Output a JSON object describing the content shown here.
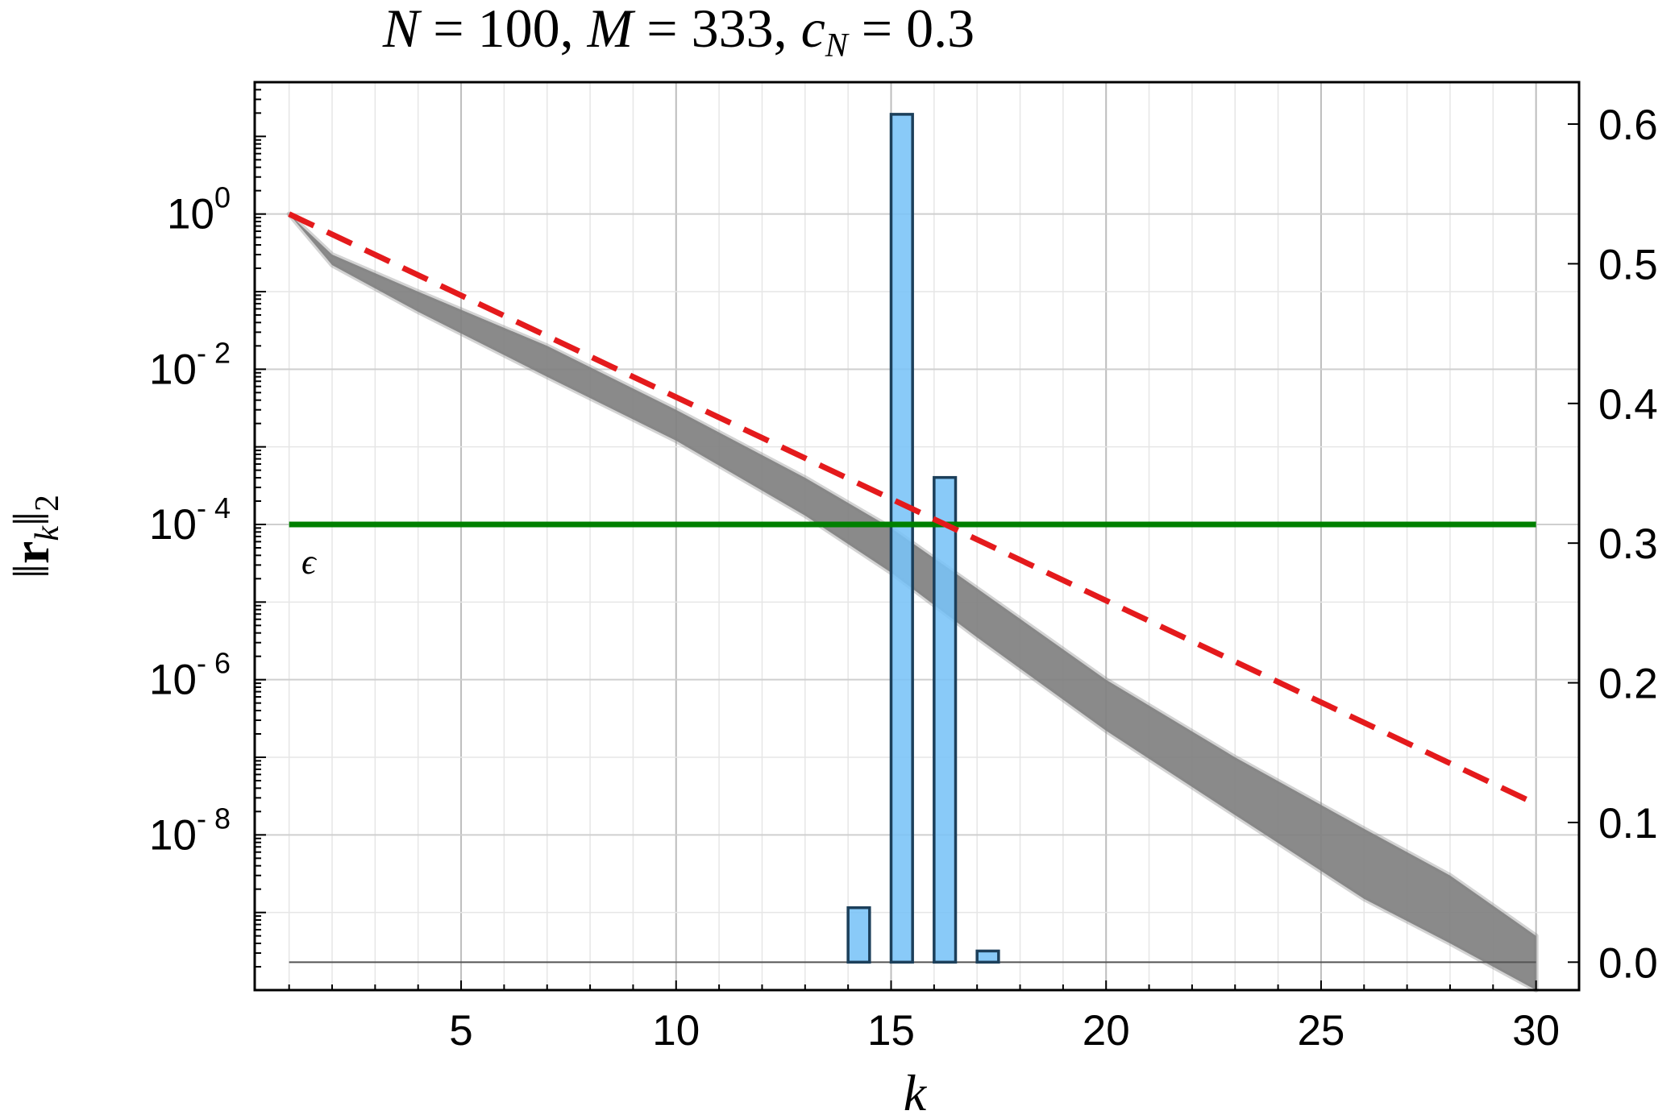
{
  "chart_data": {
    "type": "line",
    "title_math": {
      "N": "100",
      "M": "333",
      "cN": "0.3"
    },
    "xlabel": "k",
    "ylabel": "||r_k||_2",
    "x_ticks": [
      5,
      10,
      15,
      20,
      25,
      30
    ],
    "xlim": [
      0.2,
      31
    ],
    "y_left": {
      "scale": "log",
      "range": [
        1e-10,
        50
      ],
      "tick_exponents": [
        0,
        -2,
        -4,
        -6,
        -8
      ],
      "tick_base": "10"
    },
    "y_right": {
      "range": [
        -0.02,
        0.63
      ],
      "ticks": [
        "0.0",
        "0.1",
        "0.2",
        "0.3",
        "0.4",
        "0.5",
        "0.6"
      ]
    },
    "grid": true,
    "band": {
      "color": "#808080",
      "x": [
        1,
        2,
        4,
        7,
        10,
        13,
        15,
        17,
        20,
        23,
        26,
        28,
        30
      ],
      "upper": [
        1.0,
        0.3,
        0.1,
        0.02,
        0.003,
        0.0004,
        9e-05,
        1.5e-05,
        1e-06,
        1e-07,
        1.2e-08,
        3e-09,
        5e-10
      ],
      "lower": [
        1.0,
        0.22,
        0.055,
        0.008,
        0.0012,
        0.00013,
        2.4e-05,
        3.5e-06,
        2.2e-07,
        1.8e-08,
        1.5e-09,
        4e-10,
        1e-10
      ]
    },
    "reference_line": {
      "color": "#e41a1c",
      "style": "dashed",
      "x": [
        1,
        30
      ],
      "y": [
        1.0,
        2.5e-08
      ]
    },
    "epsilon_line": {
      "color": "#008000",
      "y": 0.0001,
      "x": [
        1,
        30
      ],
      "label": "ϵ"
    },
    "histogram": {
      "axis": "right",
      "color": "#79c3f7",
      "edge": "#1c3f5a",
      "bars": [
        {
          "x0": 14,
          "x1": 14.5,
          "value": 0.039
        },
        {
          "x0": 15,
          "x1": 15.5,
          "value": 0.607
        },
        {
          "x0": 16,
          "x1": 16.5,
          "value": 0.347
        },
        {
          "x0": 17,
          "x1": 17.5,
          "value": 0.008
        }
      ]
    }
  }
}
